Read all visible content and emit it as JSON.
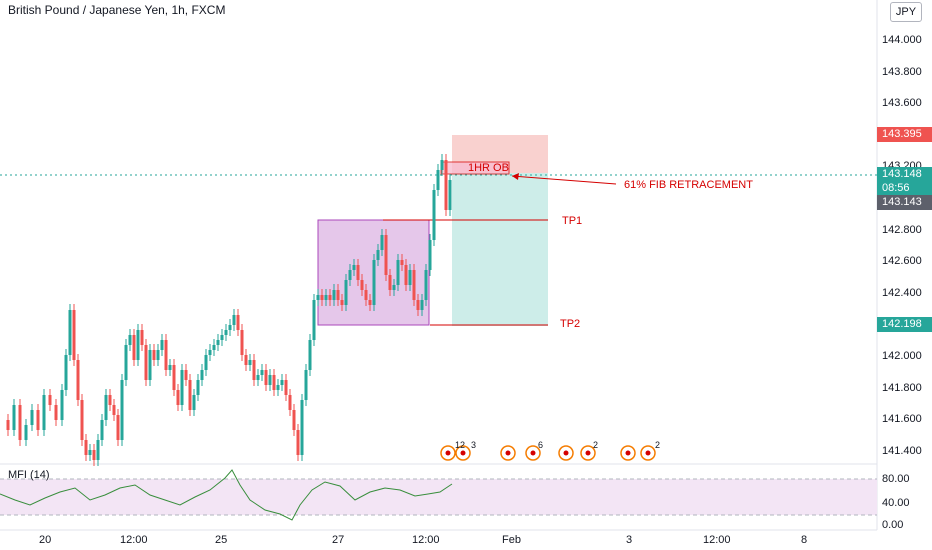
{
  "header": {
    "title": "British Pound / Japanese Yen, 1h, FXCM",
    "currency_button": "JPY"
  },
  "price_axis": {
    "labels": [
      "144.000",
      "143.800",
      "143.600",
      "143.200",
      "142.800",
      "142.600",
      "142.400",
      "142.000",
      "141.800",
      "141.600",
      "141.400"
    ],
    "tags": {
      "stop": "143.395",
      "last": "143.148",
      "countdown": "08:56",
      "bid": "143.143",
      "tp2": "142.198"
    }
  },
  "indicator": {
    "title": "MFI (14)",
    "axis_labels": [
      "80.00",
      "40.00",
      "0.00"
    ]
  },
  "time_axis": {
    "labels": [
      "20",
      "12:00",
      "25",
      "27",
      "12:00",
      "Feb",
      "3",
      "12:00",
      "8"
    ]
  },
  "annotations": {
    "ob": "1HR OB",
    "fib": "61% FIB RETRACEMENT",
    "tp1": "TP1",
    "tp2": "TP2"
  },
  "events": {
    "badges": [
      "12",
      "3",
      "6",
      "2",
      "2"
    ]
  },
  "colors": {
    "up": "#26a69a",
    "down": "#ef5350",
    "range_box": "#9c27b0",
    "stop_zone": "#f7c5c3",
    "target_zone": "#c8ebe7",
    "last_price": "#26a69a"
  },
  "chart_data": {
    "type": "candlestick",
    "symbol": "GBPJPY",
    "interval": "1h",
    "ylim": [
      141.34,
      144.08
    ],
    "last_price": 143.148,
    "levels": {
      "stop": 143.395,
      "entry": 143.148,
      "tp1": 142.86,
      "tp2": 142.198
    },
    "mfi_ylim": [
      0,
      100
    ],
    "mfi_levels": [
      80,
      20
    ]
  }
}
